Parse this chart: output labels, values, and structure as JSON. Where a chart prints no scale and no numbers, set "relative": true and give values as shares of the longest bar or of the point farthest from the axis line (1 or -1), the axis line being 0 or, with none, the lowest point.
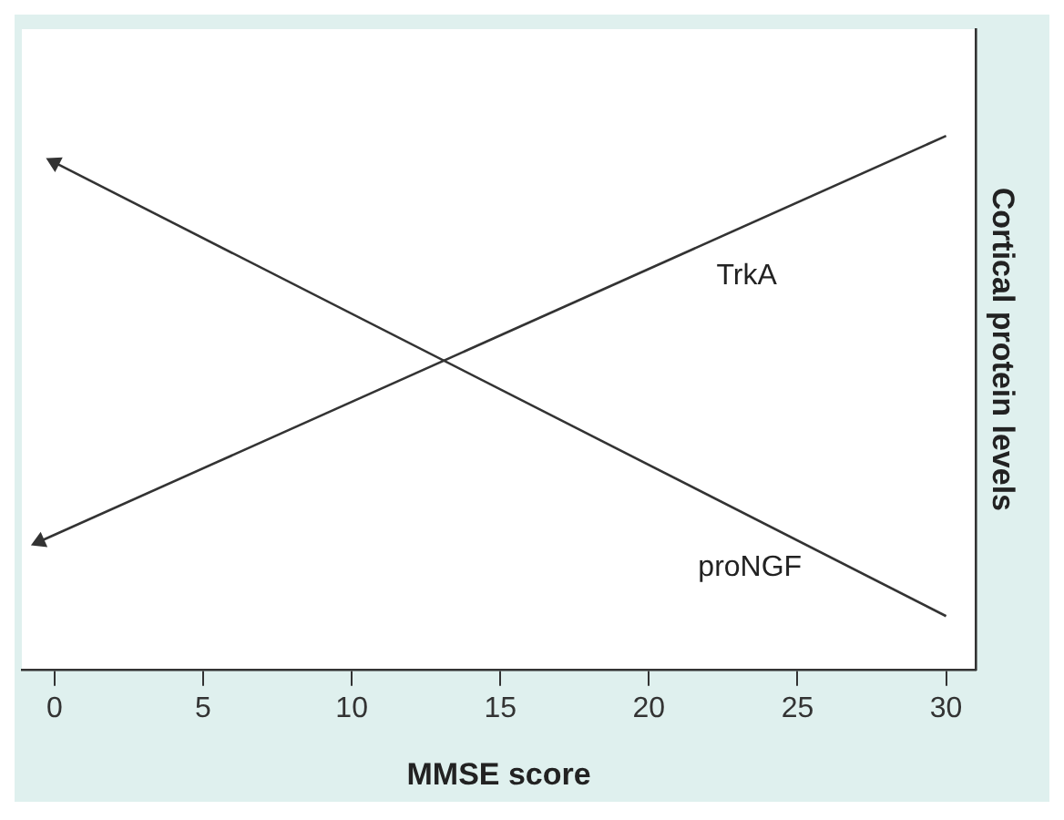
{
  "chart_data": {
    "type": "line",
    "xlabel": "MMSE score",
    "ylabel": "Cortical protein levels",
    "relative": true,
    "xlim": [
      -1.1,
      31
    ],
    "xticks": [
      0,
      5,
      10,
      15,
      20,
      25,
      30
    ],
    "grid": false,
    "legend": false,
    "line_style": "solid",
    "series": [
      {
        "name": "TrkA",
        "color": "#333333",
        "x": [
          -0.5,
          30
        ],
        "values": [
          0.24,
          1
        ]
      },
      {
        "name": "proNGF",
        "color": "#333333",
        "x": [
          0,
          30
        ],
        "values": [
          0.95,
          0.1
        ]
      }
    ]
  }
}
